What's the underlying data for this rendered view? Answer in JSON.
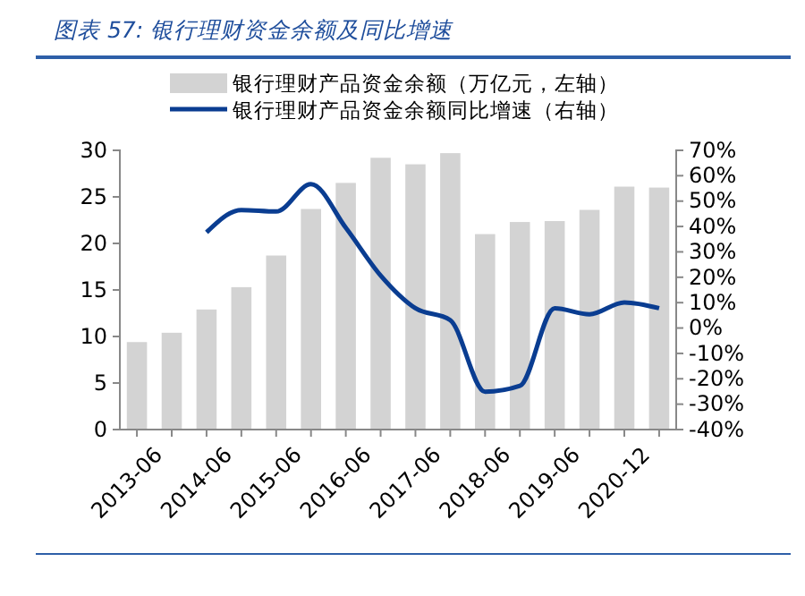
{
  "chart_data": {
    "type": "bar",
    "title": "图表 57:  银行理财资金余额及同比增速",
    "categories": [
      "2013-06",
      null,
      "2014-06",
      null,
      "2015-06",
      null,
      "2016-06",
      null,
      "2017-06",
      null,
      "2018-06",
      null,
      "2019-06",
      null,
      "2020-12",
      null
    ],
    "series": [
      {
        "name": "银行理财产品资金余额（万亿元，左轴）",
        "color": "#d3d3d3",
        "values": [
          9.4,
          10.4,
          12.9,
          15.3,
          18.7,
          23.7,
          26.5,
          29.2,
          28.5,
          29.7,
          21.0,
          22.3,
          22.4,
          23.6,
          26.1,
          26.0
        ]
      },
      {
        "name": "银行理财产品资金余额同比增速（右轴）",
        "type": "line",
        "axis": "y2",
        "color": "#0a3d91",
        "values": [
          null,
          null,
          37.7,
          46.5,
          45.9,
          56.7,
          39.5,
          20.7,
          7.8,
          3.1,
          -25.1,
          -22.8,
          7.8,
          5.4,
          10.1,
          7.8
        ]
      }
    ],
    "ylim": [
      0,
      30
    ],
    "yticks": [
      0,
      5,
      10,
      15,
      20,
      25,
      30
    ],
    "y2lim": [
      -40,
      70
    ],
    "y2ticks": [
      {
        "value": -40,
        "label": "-40%"
      },
      {
        "value": -30,
        "label": "-30%"
      },
      {
        "value": -20,
        "label": "-20%"
      },
      {
        "value": -10,
        "label": "-10%"
      },
      {
        "value": 0,
        "label": "0%"
      },
      {
        "value": 10,
        "label": "10%"
      },
      {
        "value": 20,
        "label": "20%"
      },
      {
        "value": 30,
        "label": "30%"
      },
      {
        "value": 40,
        "label": "40%"
      },
      {
        "value": 50,
        "label": "50%"
      },
      {
        "value": 60,
        "label": "60%"
      },
      {
        "value": 70,
        "label": "70%"
      }
    ],
    "legend": "top",
    "grid": false
  }
}
